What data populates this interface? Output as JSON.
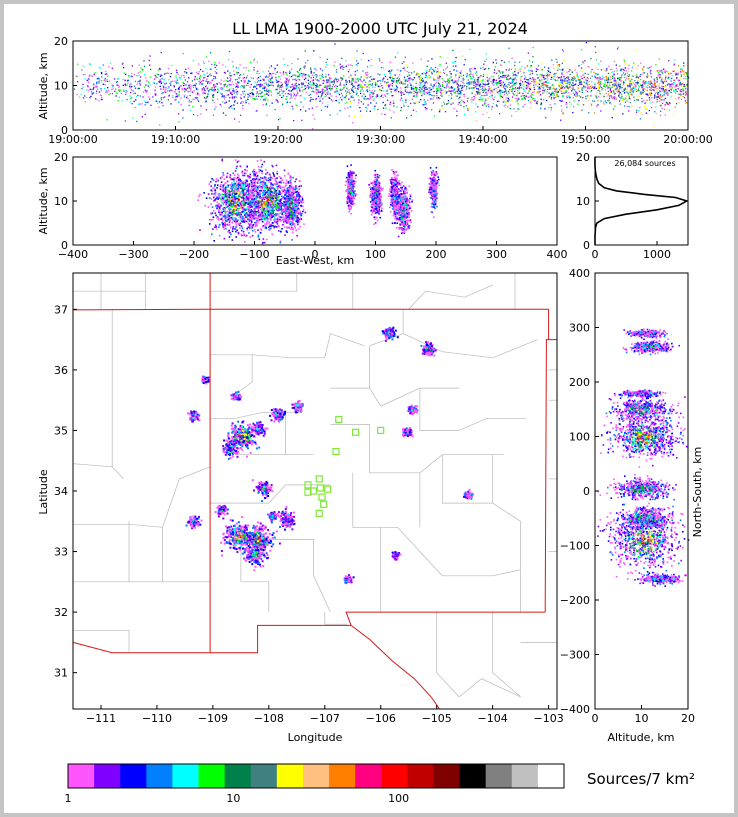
{
  "chart_data": {
    "type": "scatter",
    "title": "LL LMA 1900-2000 UTC July 21, 2024",
    "panels": {
      "time_altitude": {
        "ylabel": "Altitude, km",
        "xlim": [
          "19:00:00",
          "20:00:00"
        ],
        "ylim": [
          0,
          20
        ],
        "xticks": [
          "19:00:00",
          "19:10:00",
          "19:20:00",
          "19:30:00",
          "19:40:00",
          "19:50:00",
          "20:00:00"
        ],
        "yticks": [
          0,
          10,
          20
        ]
      },
      "ew_altitude": {
        "xlabel": "East-West, km",
        "ylabel": "Altitude, km",
        "xlim": [
          -400,
          400
        ],
        "ylim": [
          0,
          20
        ],
        "xticks": [
          -400,
          -300,
          -200,
          -100,
          0,
          100,
          200,
          300,
          400
        ],
        "yticks": [
          0,
          10,
          20
        ],
        "clusters": [
          {
            "x": -130,
            "y": 10,
            "spread": 22,
            "intensity": 1.0
          },
          {
            "x": -80,
            "y": 10,
            "spread": 18,
            "intensity": 0.9
          },
          {
            "x": -40,
            "y": 9,
            "spread": 8,
            "intensity": 0.5
          },
          {
            "x": 58,
            "y": 13,
            "spread": 3,
            "intensity": 0.3
          },
          {
            "x": 100,
            "y": 11,
            "spread": 4,
            "intensity": 0.35
          },
          {
            "x": 130,
            "y": 12,
            "spread": 3,
            "intensity": 0.25
          },
          {
            "x": 145,
            "y": 8,
            "spread": 5,
            "intensity": 0.45
          },
          {
            "x": 195,
            "y": 13,
            "spread": 3,
            "intensity": 0.25
          }
        ]
      },
      "altitude_histogram": {
        "annotation": "26,084 sources",
        "xlim": [
          0,
          1500
        ],
        "ylim": [
          0,
          20
        ],
        "xticks": [
          0,
          1000
        ],
        "yticks": [
          0,
          10,
          20
        ],
        "profile": [
          [
            0,
            0
          ],
          [
            0,
            2
          ],
          [
            8,
            4
          ],
          [
            30,
            5
          ],
          [
            150,
            6
          ],
          [
            500,
            7
          ],
          [
            1000,
            8
          ],
          [
            1350,
            9
          ],
          [
            1480,
            10
          ],
          [
            1300,
            10.8
          ],
          [
            800,
            11.5
          ],
          [
            350,
            12.3
          ],
          [
            150,
            13
          ],
          [
            60,
            14
          ],
          [
            30,
            15
          ],
          [
            15,
            16
          ],
          [
            5,
            17
          ],
          [
            0,
            18
          ],
          [
            0,
            20
          ]
        ]
      },
      "map": {
        "xlabel": "Longitude",
        "ylabel": "Latitude",
        "xlim": [
          -111.5,
          -102.85
        ],
        "ylim": [
          30.4,
          37.6
        ],
        "xticks": [
          -111,
          -110,
          -109,
          -108,
          -107,
          -106,
          -105,
          -104,
          -103
        ],
        "yticks": [
          31,
          32,
          33,
          34,
          35,
          36,
          37
        ],
        "stations": [
          [
            -107.3,
            34.1
          ],
          [
            -107.3,
            33.98
          ],
          [
            -107.2,
            34.0
          ],
          [
            -107.1,
            34.2
          ],
          [
            -107.08,
            34.05
          ],
          [
            -107.05,
            33.9
          ],
          [
            -107.02,
            33.78
          ],
          [
            -107.1,
            33.63
          ],
          [
            -106.95,
            34.03
          ],
          [
            -106.8,
            34.65
          ],
          [
            -106.75,
            35.18
          ],
          [
            -106.45,
            34.97
          ],
          [
            -106.0,
            35.0
          ]
        ],
        "clusters": [
          {
            "lon": -108.55,
            "lat": 33.25,
            "spread": 0.12,
            "intensity": 0.9
          },
          {
            "lon": -108.2,
            "lat": 33.2,
            "spread": 0.12,
            "intensity": 1.0
          },
          {
            "lon": -108.25,
            "lat": 32.95,
            "spread": 0.08,
            "intensity": 0.6
          },
          {
            "lon": -108.5,
            "lat": 34.92,
            "spread": 0.12,
            "intensity": 0.9
          },
          {
            "lon": -108.7,
            "lat": 34.7,
            "spread": 0.06,
            "intensity": 0.4
          },
          {
            "lon": -108.1,
            "lat": 34.05,
            "spread": 0.06,
            "intensity": 0.5
          },
          {
            "lon": -107.5,
            "lat": 35.4,
            "spread": 0.04,
            "intensity": 0.4
          },
          {
            "lon": -107.85,
            "lat": 35.28,
            "spread": 0.05,
            "intensity": 0.4
          },
          {
            "lon": -107.7,
            "lat": 33.55,
            "spread": 0.07,
            "intensity": 0.4
          },
          {
            "lon": -107.95,
            "lat": 33.6,
            "spread": 0.04,
            "intensity": 0.3
          },
          {
            "lon": -108.85,
            "lat": 33.7,
            "spread": 0.04,
            "intensity": 0.3
          },
          {
            "lon": -109.35,
            "lat": 33.5,
            "spread": 0.05,
            "intensity": 0.3
          },
          {
            "lon": -109.35,
            "lat": 35.25,
            "spread": 0.04,
            "intensity": 0.3
          },
          {
            "lon": -108.2,
            "lat": 35.05,
            "spread": 0.05,
            "intensity": 0.4
          },
          {
            "lon": -105.85,
            "lat": 36.62,
            "spread": 0.05,
            "intensity": 0.4
          },
          {
            "lon": -105.15,
            "lat": 36.35,
            "spread": 0.05,
            "intensity": 0.4
          },
          {
            "lon": -105.55,
            "lat": 34.98,
            "spread": 0.04,
            "intensity": 0.3
          },
          {
            "lon": -105.45,
            "lat": 35.35,
            "spread": 0.03,
            "intensity": 0.3
          },
          {
            "lon": -105.75,
            "lat": 32.95,
            "spread": 0.03,
            "intensity": 0.25
          },
          {
            "lon": -106.6,
            "lat": 32.55,
            "spread": 0.03,
            "intensity": 0.25
          },
          {
            "lon": -104.45,
            "lat": 33.95,
            "spread": 0.03,
            "intensity": 0.2
          },
          {
            "lon": -108.6,
            "lat": 35.58,
            "spread": 0.03,
            "intensity": 0.25
          },
          {
            "lon": -109.15,
            "lat": 35.85,
            "spread": 0.03,
            "intensity": 0.2
          }
        ]
      },
      "ns_altitude": {
        "xlabel": "Altitude, km",
        "ylabel": "North-South, km",
        "xlim": [
          0,
          20
        ],
        "ylim": [
          -400,
          400
        ],
        "xticks": [
          0,
          10,
          20
        ],
        "yticks": [
          -400,
          -300,
          -200,
          -100,
          0,
          100,
          200,
          300,
          400
        ],
        "clusters": [
          {
            "x": 10.5,
            "y": 100,
            "spread": 18,
            "intensity": 1.0
          },
          {
            "x": 10,
            "y": 150,
            "spread": 10,
            "intensity": 0.6
          },
          {
            "x": 10.5,
            "y": -90,
            "spread": 25,
            "intensity": 1.0
          },
          {
            "x": 10.5,
            "y": -50,
            "spread": 10,
            "intensity": 0.6
          },
          {
            "x": 10,
            "y": 5,
            "spread": 8,
            "intensity": 0.6
          },
          {
            "x": 11.5,
            "y": 265,
            "spread": 5,
            "intensity": 0.3
          },
          {
            "x": 11,
            "y": 290,
            "spread": 3,
            "intensity": 0.2
          },
          {
            "x": 14,
            "y": -160,
            "spread": 4,
            "intensity": 0.3
          },
          {
            "x": 10,
            "y": 180,
            "spread": 3,
            "intensity": 0.25
          }
        ]
      }
    },
    "colorbar": {
      "label": "Sources/7 km²",
      "scale": "log",
      "range": [
        1,
        1000
      ],
      "ticks": [
        1,
        10,
        100
      ],
      "colors": [
        "#ff55ff",
        "#8000ff",
        "#0000ff",
        "#0080ff",
        "#00ffff",
        "#00ff00",
        "#00804a",
        "#408080",
        "#ffff00",
        "#ffc080",
        "#ff8000",
        "#ff0080",
        "#ff0000",
        "#c00000",
        "#800000",
        "#000000",
        "#808080",
        "#c0c0c0",
        "#ffffff"
      ]
    }
  }
}
